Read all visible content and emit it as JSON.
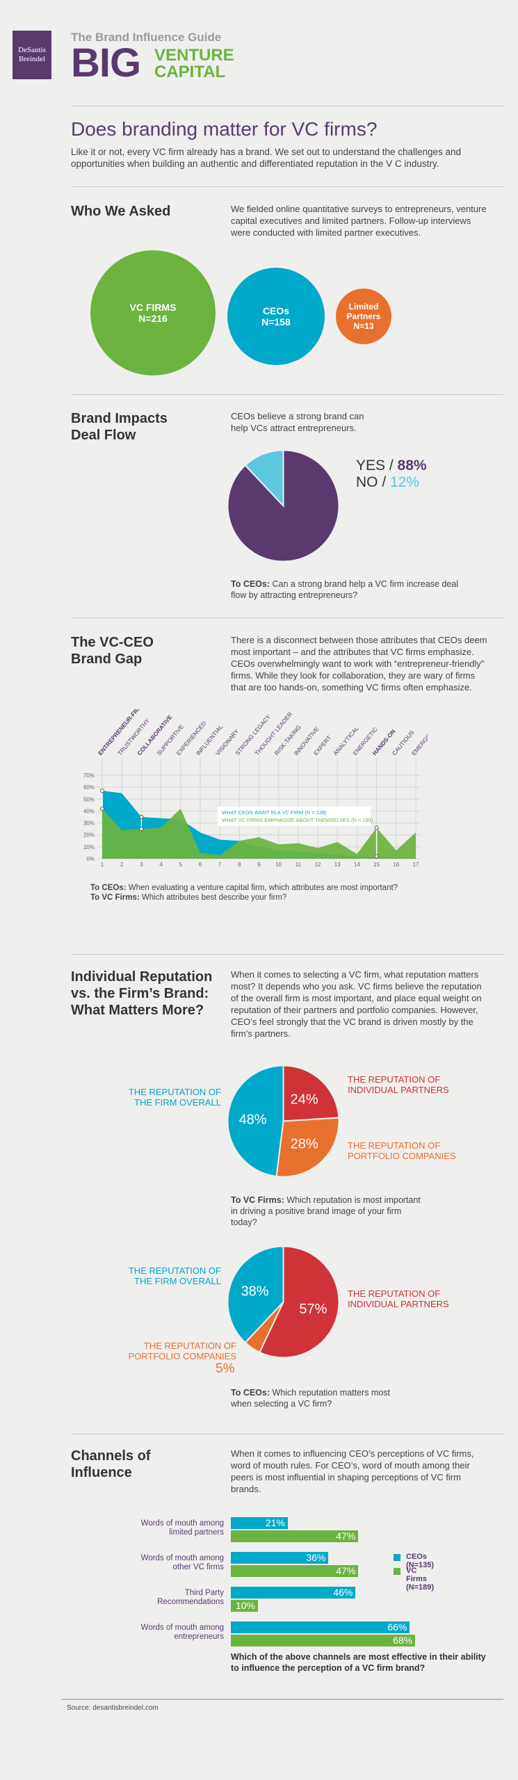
{
  "header": {
    "logo_line1": "DeSantis",
    "logo_line2": "Breindel",
    "guide": "The Brand Influence Guide",
    "big": "BIG",
    "venture": "VENTURE",
    "capital": "CAPITAL"
  },
  "intro": {
    "title": "Does branding matter for VC firms?",
    "text": "Like it or not, every VC firm already has a brand. We set out to understand the challenges and opportunities when building an authentic and differentiated reputation in the V C industry."
  },
  "who": {
    "title": "Who We Asked",
    "text": "We fielded online quantitative surveys to entrepreneurs, venture capital executives and limited partners. Follow-up interviews were conducted with limited partner executives.",
    "groups": [
      {
        "label": "VC FIRMS",
        "n": "N=216",
        "value": 216,
        "color": "#6cb33f"
      },
      {
        "label": "CEOs",
        "n": "N=158",
        "value": 158,
        "color": "#00a9c9"
      },
      {
        "label": "Limited Partners",
        "n": "N=13",
        "value": 13,
        "color": "#e8702f"
      }
    ]
  },
  "deal": {
    "title_l1": "Brand Impacts",
    "title_l2": "Deal Flow",
    "text": "CEOs believe a strong brand can help VCs attract entrepreneurs.",
    "yes_label": "YES /",
    "yes_value": "88%",
    "no_label": "NO /",
    "no_value": "12%",
    "q_label": "To CEOs:",
    "q_text": "Can a strong brand help a VC firm increase deal flow by attracting entrepreneurs?"
  },
  "gap": {
    "title_l1": "The VC-CEO",
    "title_l2": "Brand Gap",
    "text": "There is a disconnect between those attributes that CEOs deem most important – and the attributes that VC firms emphasize. CEOs overwhelmingly want to work with “entrepreneur-friendly” firms. While they look for collaboration, they are wary of firms that are too hands-on, something VC firms often emphasize.",
    "q1_label": "To CEOs:",
    "q1_text": "When evaluating a venture capital firm, which attributes are most important?",
    "q2_label": "To VC Firms:",
    "q2_text": "Which attributes best describe your firm?"
  },
  "rep": {
    "title_l1": "Individual Reputation",
    "title_l2": "vs. the Firm’s Brand:",
    "title_l3": "What Matters More?",
    "text": "When it comes to selecting a VC firm, what reputation matters most? It depends who you ask. VC firms believe the reputation of the overall firm is most important, and place equal weight on reputation of their partners and portfolio companies. However, CEO’s feel strongly that the VC brand is driven mostly by the firm’s partners.",
    "firm_l1": "THE REPUTATION OF",
    "firm_l2": "THE FIRM OVERALL",
    "partners_l1": "THE REPUTATION OF",
    "partners_l2": "INDIVIDUAL PARTNERS",
    "portfolio_l1": "THE REPUTATION OF",
    "portfolio_l2": "PORTFOLIO COMPANIES",
    "q1_label": "To VC Firms:",
    "q1_text": "Which reputation is most important in driving a positive brand image of your firm today?",
    "q2_label": "To CEOs:",
    "q2_text": "Which reputation matters most when selecting a VC firm?"
  },
  "channels": {
    "title_l1": "Channels of",
    "title_l2": "Influence",
    "text": "When it comes to influencing CEO’s perceptions of VC firms, word of mouth rules. For CEO’s, word of mouth among their peers is most influential in shaping perceptions of VC firm brands.",
    "question": "Which of the above channels are most effective in their ability to influence the perception of a VC firm brand?",
    "source": "Source: desantisbreindel.com"
  },
  "chart_data": [
    {
      "type": "pie",
      "title": "",
      "slices": [
        {
          "name": "YES",
          "value": 88,
          "color": "#5a3a6e"
        },
        {
          "name": "NO",
          "value": 12,
          "color": "#5bc8e0"
        }
      ]
    },
    {
      "type": "area",
      "x": [
        1,
        2,
        3,
        4,
        5,
        6,
        7,
        8,
        9,
        10,
        11,
        12,
        13,
        14,
        15,
        16,
        17
      ],
      "categories": [
        "ENTREPRENEUR-FRIENDLY",
        "TRUSTWORTHY",
        "COLLABORATIVE",
        "SUPPORTIVE",
        "EXPERIENCED",
        "INFLUENTIAL",
        "VISIONARY",
        "STRONG LEGACY",
        "THOUGHT LEADER",
        "RISK-TAKING",
        "INNOVATIVE",
        "EXPERT",
        "ANALYTICAL",
        "ENERGETIC",
        "HANDS-ON",
        "CAUTIOUS",
        "EMERGING"
      ],
      "ylim": [
        0,
        70
      ],
      "yticks": [
        "0%",
        "10%",
        "20%",
        "30%",
        "40%",
        "50%",
        "60%",
        "70%"
      ],
      "grid": true,
      "legend_position": "center",
      "series": [
        {
          "name": "WHAT CEOS WANT IN A VC FIRM (N = 139)",
          "color": "#00a9c9",
          "values": [
            57,
            55,
            35,
            34,
            33,
            22,
            16,
            15,
            10,
            7,
            6,
            5,
            3,
            2,
            2,
            1,
            1
          ]
        },
        {
          "name": "WHAT VC FIRMS EMPHASIZE ABOUT THEMSELVES (N = 189)",
          "color": "#6cb33f",
          "values": [
            42,
            24,
            25,
            26,
            42,
            5,
            3,
            15,
            18,
            12,
            13,
            9,
            14,
            4,
            26,
            7,
            22
          ]
        }
      ]
    },
    {
      "type": "pie",
      "title": "",
      "slices": [
        {
          "name": "THE REPUTATION OF INDIVIDUAL PARTNERS",
          "value": 24,
          "label": "24%",
          "color": "#cf3237"
        },
        {
          "name": "THE REPUTATION OF PORTFOLIO COMPANIES",
          "value": 28,
          "label": "28%",
          "color": "#e8702f"
        },
        {
          "name": "THE REPUTATION OF THE FIRM OVERALL",
          "value": 48,
          "label": "48%",
          "color": "#00a9c9"
        }
      ]
    },
    {
      "type": "pie",
      "title": "",
      "slices": [
        {
          "name": "THE REPUTATION OF INDIVIDUAL PARTNERS",
          "value": 57,
          "label": "57%",
          "color": "#cf3237"
        },
        {
          "name": "THE REPUTATION OF PORTFOLIO COMPANIES",
          "value": 5,
          "label": "5%",
          "color": "#e8702f"
        },
        {
          "name": "THE REPUTATION OF THE FIRM OVERALL",
          "value": 38,
          "label": "38%",
          "color": "#00a9c9"
        }
      ]
    },
    {
      "type": "bar",
      "orientation": "horizontal",
      "xlim": [
        0,
        100
      ],
      "categories": [
        {
          "l1": "Words of mouth among",
          "l2": "limited partners"
        },
        {
          "l1": "Words of mouth among",
          "l2": "other VC firms"
        },
        {
          "l1": "Third Party",
          "l2": "Recommendations"
        },
        {
          "l1": "Words of mouth among",
          "l2": "entrepreneurs"
        }
      ],
      "legend_position": "right",
      "series": [
        {
          "name": "CEOs (N=135)",
          "color": "#00a9c9",
          "values": [
            21,
            36,
            46,
            66
          ]
        },
        {
          "name": "VC Firms (N=189)",
          "color": "#6cb33f",
          "values": [
            47,
            47,
            10,
            68
          ]
        }
      ]
    }
  ]
}
